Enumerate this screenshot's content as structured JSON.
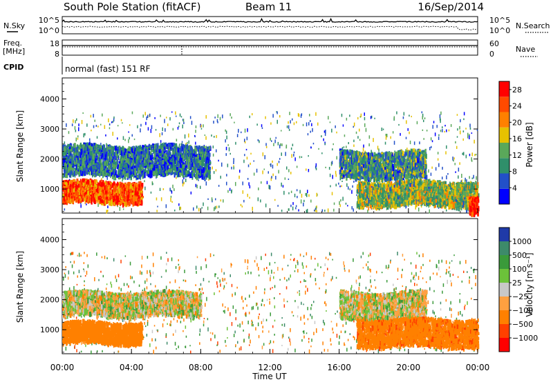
{
  "header": {
    "station": "South Pole Station (fitACF)",
    "beam": "Beam 11",
    "date": "16/Sep/2014"
  },
  "noise_panel": {
    "left_label": "N.Sky",
    "right_label": "N.Search",
    "left_ticks": [
      "10^5",
      "10^0"
    ],
    "right_ticks": [
      "10^5",
      "10^0"
    ]
  },
  "freq_panel": {
    "left_label_line1": "Freq.",
    "left_label_line2": "[MHz]",
    "right_label": "Nave",
    "left_ticks": [
      "18",
      "8"
    ],
    "right_ticks": [
      "60",
      "0"
    ]
  },
  "cpid": {
    "label": "CPID",
    "value": "normal (fast) 151 RF"
  },
  "colors": {
    "power_scale": [
      "#0000ff",
      "#2250c8",
      "#2f8f6a",
      "#5aa85a",
      "#e6c100",
      "#ff8000",
      "#ff4a00",
      "#ff0000"
    ],
    "velocity_scale": [
      "#1f3aa8",
      "#3d8a6a",
      "#3a9a3a",
      "#6cc23a",
      "#c8c8c8",
      "#ffa040",
      "#ff8000",
      "#ff4000",
      "#ff0000"
    ]
  },
  "chart_data": [
    {
      "type": "heatmap",
      "title": "",
      "xlabel": "",
      "ylabel": "Slant Range [km]",
      "xticks": [
        "00:00",
        "04:00",
        "08:00",
        "12:00",
        "16:00",
        "20:00",
        "00:00"
      ],
      "yticks": [
        1000,
        2000,
        3000,
        4000
      ],
      "ylim": [
        200,
        4700
      ],
      "colorbar": {
        "label": "Power [dB]",
        "ticks": [
          4,
          8,
          12,
          16,
          20,
          24,
          28
        ],
        "range": [
          0,
          30
        ]
      },
      "features": [
        {
          "t_start": 0.0,
          "t_end": 4.6,
          "range_km": [
            600,
            1300
          ],
          "value_db": 24
        },
        {
          "t_start": 0.0,
          "t_end": 8.5,
          "range_km": [
            1500,
            2500
          ],
          "value_db": 8
        },
        {
          "t_start": 16.0,
          "t_end": 21.0,
          "range_km": [
            1400,
            2300
          ],
          "value_db": 10
        },
        {
          "t_start": 17.0,
          "t_end": 24.0,
          "range_km": [
            500,
            1300
          ],
          "value_db": 14
        },
        {
          "t_start": 23.5,
          "t_end": 24.0,
          "range_km": [
            200,
            800
          ],
          "value_db": 28
        }
      ]
    },
    {
      "type": "heatmap",
      "title": "",
      "xlabel": "Time UT",
      "ylabel": "Slant Range [km]",
      "xticks": [
        "00:00",
        "04:00",
        "08:00",
        "12:00",
        "16:00",
        "20:00",
        "00:00"
      ],
      "yticks": [
        1000,
        2000,
        3000,
        4000
      ],
      "ylim": [
        200,
        4700
      ],
      "colorbar": {
        "label": "Velocity [m s⁻¹]",
        "ticks": [
          "1000",
          "500",
          "100",
          "25",
          "−25",
          "−100",
          "−500",
          "−1000"
        ]
      },
      "features": [
        {
          "t_start": 0.0,
          "t_end": 4.6,
          "range_km": [
            600,
            1300
          ],
          "value_ms": -300
        },
        {
          "t_start": 0.0,
          "t_end": 8.0,
          "range_km": [
            1500,
            2300
          ],
          "value_ms": 0
        },
        {
          "t_start": 16.0,
          "t_end": 21.0,
          "range_km": [
            1400,
            2300
          ],
          "value_ms": 0
        },
        {
          "t_start": 17.0,
          "t_end": 24.0,
          "range_km": [
            500,
            1400
          ],
          "value_ms": -400
        }
      ]
    }
  ],
  "xaxis_label": "Time UT"
}
